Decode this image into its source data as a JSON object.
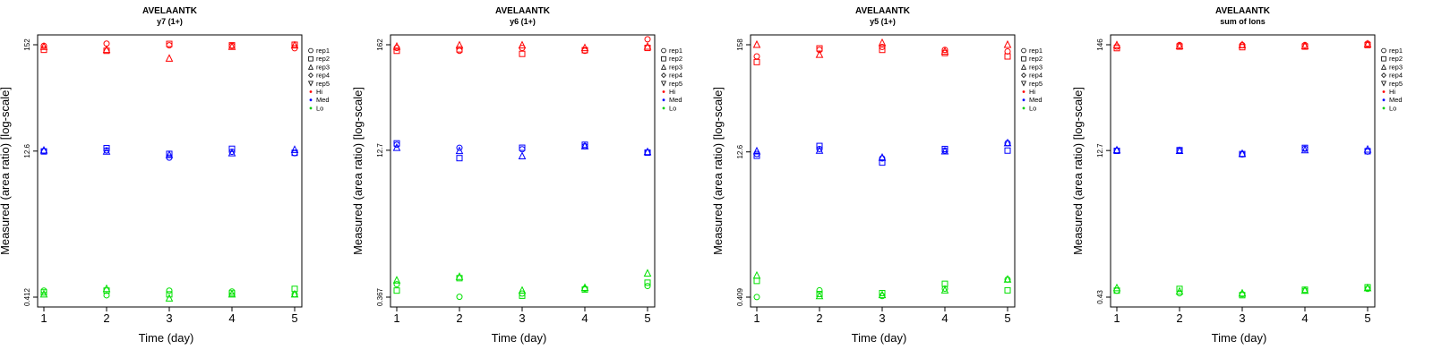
{
  "legend": [
    {
      "label": "rep1",
      "symbol": "circle"
    },
    {
      "label": "rep2",
      "symbol": "square"
    },
    {
      "label": "rep3",
      "symbol": "triangle-up"
    },
    {
      "label": "rep4",
      "symbol": "diamond"
    },
    {
      "label": "rep5",
      "symbol": "triangle-down"
    },
    {
      "label": "Hi",
      "symbol": "dot",
      "color": "#ff0000"
    },
    {
      "label": "Med",
      "symbol": "dot",
      "color": "#0000ff"
    },
    {
      "label": "Lo",
      "symbol": "dot",
      "color": "#00cc00"
    }
  ],
  "colors": {
    "Hi": "#ff0000",
    "Med": "#0000ff",
    "Lo": "#00e000"
  },
  "chart_data": [
    {
      "type": "scatter",
      "title": "AVELAANTK",
      "subtitle": "y7 (1+)",
      "xlabel": "Time (day)",
      "ylabel": "Measured (area ratio) [log-scale]",
      "x": [
        1,
        2,
        3,
        4,
        5
      ],
      "xticks": [
        "1",
        "2",
        "3",
        "4",
        "5"
      ],
      "yticks": [
        "0.412",
        "12.6",
        "152"
      ],
      "series": [
        {
          "name": "Hi rep1",
          "level": "Hi",
          "rep": "rep1",
          "values": [
            148,
            156,
            150,
            148,
            140
          ]
        },
        {
          "name": "Hi rep2",
          "level": "Hi",
          "rep": "rep2",
          "values": [
            135,
            132,
            155,
            150,
            152
          ]
        },
        {
          "name": "Hi rep3",
          "level": "Hi",
          "rep": "rep3",
          "values": [
            145,
            135,
            110,
            145,
            150
          ]
        },
        {
          "name": "Med rep1",
          "level": "Med",
          "rep": "rep1",
          "values": [
            12.6,
            12.8,
            10.8,
            12.4,
            12.0
          ]
        },
        {
          "name": "Med rep2",
          "level": "Med",
          "rep": "rep2",
          "values": [
            12.5,
            13.5,
            11.8,
            13.3,
            12.1
          ]
        },
        {
          "name": "Med rep3",
          "level": "Med",
          "rep": "rep3",
          "values": [
            12.8,
            12.5,
            11.5,
            12.0,
            13.0
          ]
        },
        {
          "name": "Lo rep1",
          "level": "Lo",
          "rep": "rep1",
          "values": [
            0.48,
            0.43,
            0.48,
            0.47,
            0.44
          ]
        },
        {
          "name": "Lo rep2",
          "level": "Lo",
          "rep": "rep2",
          "values": [
            0.46,
            0.48,
            0.44,
            0.45,
            0.5
          ]
        },
        {
          "name": "Lo rep3",
          "level": "Lo",
          "rep": "rep3",
          "values": [
            0.44,
            0.5,
            0.4,
            0.44,
            0.44
          ]
        }
      ]
    },
    {
      "type": "scatter",
      "title": "AVELAANTK",
      "subtitle": "y6 (1+)",
      "xlabel": "Time (day)",
      "ylabel": "Measured (area ratio) [log-scale]",
      "x": [
        1,
        2,
        3,
        4,
        5
      ],
      "xticks": [
        "1",
        "2",
        "3",
        "4",
        "5"
      ],
      "yticks": [
        "0.367",
        "12.7",
        "162"
      ],
      "series": [
        {
          "name": "Hi rep1",
          "level": "Hi",
          "rep": "rep1",
          "values": [
            150,
            140,
            150,
            140,
            185
          ]
        },
        {
          "name": "Hi rep2",
          "level": "Hi",
          "rep": "rep2",
          "values": [
            140,
            145,
            130,
            142,
            150
          ]
        },
        {
          "name": "Hi rep3",
          "level": "Hi",
          "rep": "rep3",
          "values": [
            155,
            160,
            160,
            150,
            155
          ]
        },
        {
          "name": "Med rep1",
          "level": "Med",
          "rep": "rep1",
          "values": [
            14.5,
            13.5,
            13.0,
            14.0,
            12.0
          ]
        },
        {
          "name": "Med rep2",
          "level": "Med",
          "rep": "rep2",
          "values": [
            15.0,
            10.5,
            13.5,
            14.5,
            12.0
          ]
        },
        {
          "name": "Med rep3",
          "level": "Med",
          "rep": "rep3",
          "values": [
            13.5,
            12.5,
            11.0,
            14.0,
            12.2
          ]
        },
        {
          "name": "Lo rep1",
          "level": "Lo",
          "rep": "rep1",
          "values": [
            0.5,
            0.37,
            0.4,
            0.45,
            0.48
          ]
        },
        {
          "name": "Lo rep2",
          "level": "Lo",
          "rep": "rep2",
          "values": [
            0.43,
            0.58,
            0.38,
            0.44,
            0.52
          ]
        },
        {
          "name": "Lo rep3",
          "level": "Lo",
          "rep": "rep3",
          "values": [
            0.55,
            0.6,
            0.43,
            0.46,
            0.65
          ]
        }
      ]
    },
    {
      "type": "scatter",
      "title": "AVELAANTK",
      "subtitle": "y5 (1+)",
      "xlabel": "Time (day)",
      "ylabel": "Measured (area ratio) [log-scale]",
      "x": [
        1,
        2,
        3,
        4,
        5
      ],
      "xticks": [
        "1",
        "2",
        "3",
        "4",
        "5"
      ],
      "yticks": [
        "0.409",
        "12.6",
        "158"
      ],
      "series": [
        {
          "name": "Hi rep1",
          "level": "Hi",
          "rep": "rep1",
          "values": [
            120,
            140,
            150,
            140,
            135
          ]
        },
        {
          "name": "Hi rep2",
          "level": "Hi",
          "rep": "rep2",
          "values": [
            105,
            145,
            140,
            130,
            120
          ]
        },
        {
          "name": "Hi rep3",
          "level": "Hi",
          "rep": "rep3",
          "values": [
            158,
            125,
            165,
            135,
            158
          ]
        },
        {
          "name": "Med rep1",
          "level": "Med",
          "rep": "rep1",
          "values": [
            12.0,
            13.5,
            10.8,
            13.0,
            15.5
          ]
        },
        {
          "name": "Med rep2",
          "level": "Med",
          "rep": "rep2",
          "values": [
            11.5,
            14.5,
            9.8,
            13.5,
            13.0
          ]
        },
        {
          "name": "Med rep3",
          "level": "Med",
          "rep": "rep3",
          "values": [
            12.8,
            13.0,
            11.0,
            12.8,
            15.5
          ]
        },
        {
          "name": "Lo rep1",
          "level": "Lo",
          "rep": "rep1",
          "values": [
            0.41,
            0.48,
            0.42,
            0.5,
            0.62
          ]
        },
        {
          "name": "Lo rep2",
          "level": "Lo",
          "rep": "rep2",
          "values": [
            0.6,
            0.44,
            0.45,
            0.56,
            0.48
          ]
        },
        {
          "name": "Lo rep3",
          "level": "Lo",
          "rep": "rep3",
          "values": [
            0.68,
            0.42,
            0.43,
            0.48,
            0.62
          ]
        }
      ]
    },
    {
      "type": "scatter",
      "title": "AVELAANTK",
      "subtitle": "sum of Ions",
      "xlabel": "Time (day)",
      "ylabel": "Measured (area ratio) [log-scale]",
      "x": [
        1,
        2,
        3,
        4,
        5
      ],
      "xticks": [
        "1",
        "2",
        "3",
        "4",
        "5"
      ],
      "yticks": [
        "0.43",
        "12.7",
        "146"
      ],
      "series": [
        {
          "name": "Hi rep1",
          "level": "Hi",
          "rep": "rep1",
          "values": [
            140,
            145,
            145,
            145,
            150
          ]
        },
        {
          "name": "Hi rep2",
          "level": "Hi",
          "rep": "rep2",
          "values": [
            135,
            140,
            138,
            140,
            145
          ]
        },
        {
          "name": "Hi rep3",
          "level": "Hi",
          "rep": "rep3",
          "values": [
            145,
            142,
            145,
            142,
            148
          ]
        },
        {
          "name": "Med rep1",
          "level": "Med",
          "rep": "rep1",
          "values": [
            12.7,
            12.7,
            11.6,
            13.2,
            12.4
          ]
        },
        {
          "name": "Med rep2",
          "level": "Med",
          "rep": "rep2",
          "values": [
            12.6,
            12.8,
            11.7,
            13.5,
            12.5
          ]
        },
        {
          "name": "Med rep3",
          "level": "Med",
          "rep": "rep3",
          "values": [
            12.8,
            12.6,
            11.8,
            12.8,
            13.0
          ]
        },
        {
          "name": "Lo rep1",
          "level": "Lo",
          "rep": "rep1",
          "values": [
            0.5,
            0.47,
            0.46,
            0.5,
            0.52
          ]
        },
        {
          "name": "Lo rep2",
          "level": "Lo",
          "rep": "rep2",
          "values": [
            0.5,
            0.52,
            0.45,
            0.51,
            0.54
          ]
        },
        {
          "name": "Lo rep3",
          "level": "Lo",
          "rep": "rep3",
          "values": [
            0.53,
            0.49,
            0.47,
            0.5,
            0.53
          ]
        }
      ]
    }
  ]
}
